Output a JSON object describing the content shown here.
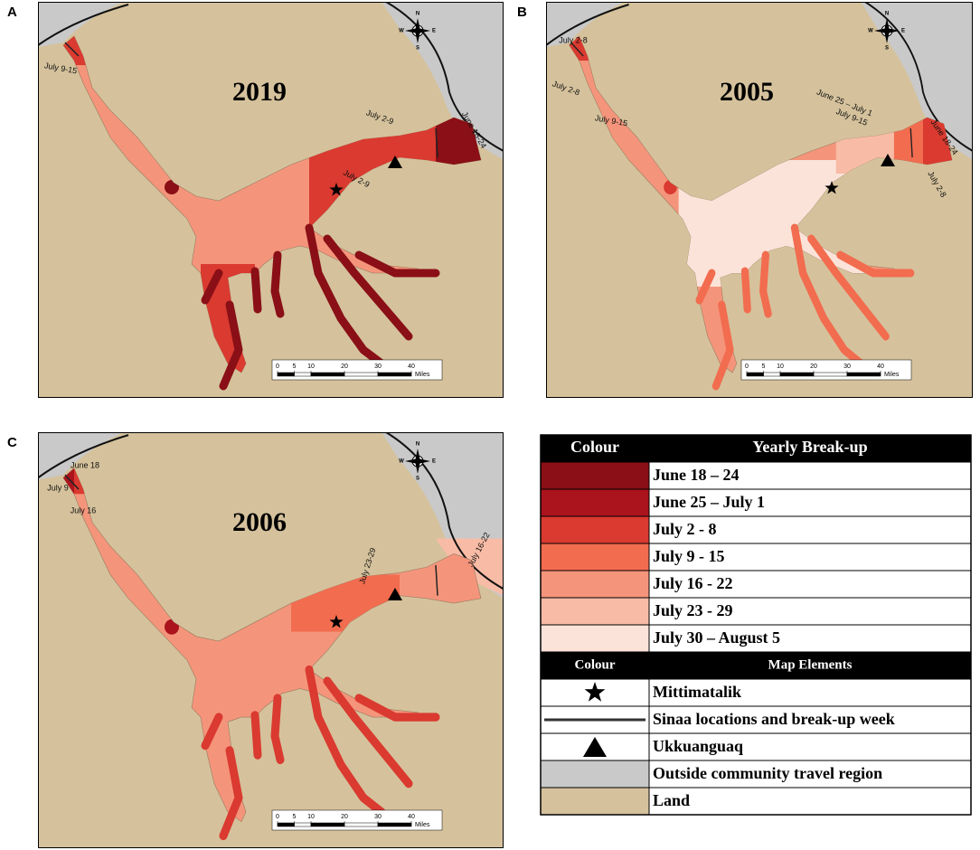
{
  "panels": [
    {
      "letter": "A",
      "year": "2019",
      "labels": [
        "July 9-15",
        "July 2-9",
        "July 2-9",
        "June 18-24"
      ]
    },
    {
      "letter": "B",
      "year": "2005",
      "labels": [
        "July 2-8",
        "July 2-8",
        "July 9-15",
        "June 25 – July 1",
        "July 9-15",
        "June 18-24",
        "July 2-8"
      ]
    },
    {
      "letter": "C",
      "year": "2006",
      "labels": [
        "June 18",
        "July 9",
        "July 16",
        "July 23-29",
        "July 16-22"
      ]
    }
  ],
  "compass": {
    "north": "N",
    "east": "E",
    "south": "S",
    "west": "W"
  },
  "scale_bar": {
    "ticks": [
      0,
      5,
      10,
      20,
      30,
      40
    ],
    "unit": "Miles"
  },
  "legend": {
    "break_up_header": [
      "Colour",
      "Yearly Break-up"
    ],
    "break_up": [
      {
        "label": "June 18 – 24",
        "color": "#8a0f16"
      },
      {
        "label": "June 25 – July 1",
        "color": "#ab131d"
      },
      {
        "label": "July 2 - 8",
        "color": "#da3a30"
      },
      {
        "label": "July 9 - 15",
        "color": "#f26c4f"
      },
      {
        "label": "July 16 - 22",
        "color": "#f4957b"
      },
      {
        "label": "July 23 - 29",
        "color": "#f8bba6"
      },
      {
        "label": "July 30 – August 5",
        "color": "#fbe3d9"
      }
    ],
    "elements_header": [
      "Colour",
      "Map Elements"
    ],
    "elements": [
      {
        "label": "Mittimatalik"
      },
      {
        "label": "Sinaa locations and break-up week"
      },
      {
        "label": "Ukkuanguaq"
      },
      {
        "label": "Outside community travel region",
        "color": "#c9c9c9"
      },
      {
        "label": "Land",
        "color": "#d5c29c"
      }
    ]
  }
}
